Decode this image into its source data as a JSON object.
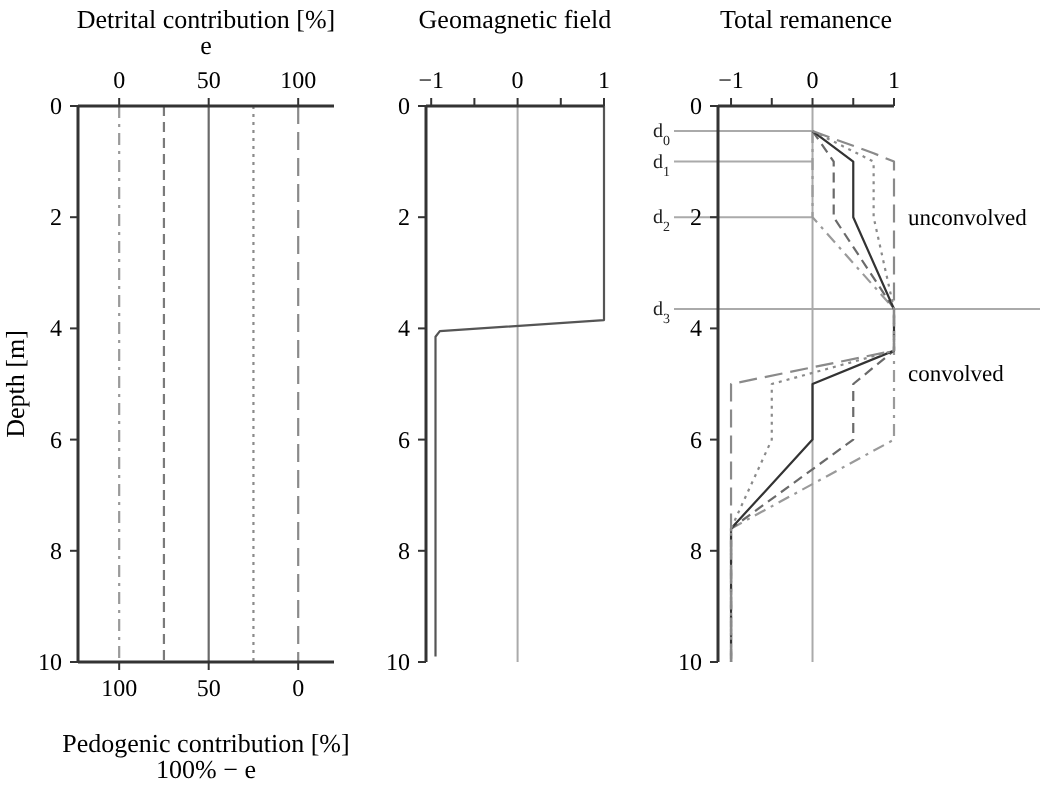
{
  "chart_data": [
    {
      "type": "line",
      "x2label": "Detrital contribution [%]\ne",
      "xlabel": "Pedogenic contribution [%]\n100% − e",
      "ylabel": "Depth [m]",
      "x2lim": [
        -23,
        120
      ],
      "x2ticks": [
        0,
        50,
        100
      ],
      "xlim": [
        123,
        -20
      ],
      "xticks": [
        100,
        50,
        0
      ],
      "ylim": [
        10,
        0
      ],
      "yticks": [
        0,
        2,
        4,
        6,
        8,
        10
      ],
      "series": [
        {
          "axis": "x2",
          "color": "#9a9a9a",
          "line_style": "dashdot",
          "x": [
            0,
            0
          ],
          "values": [
            0,
            10
          ]
        },
        {
          "axis": "x2",
          "color": "#7a7a7a",
          "line_style": "dashed",
          "x": [
            25,
            25
          ],
          "values": [
            0,
            10
          ]
        },
        {
          "axis": "x2",
          "color": "#6a6a6a",
          "line_style": "solid",
          "x": [
            50,
            50
          ],
          "values": [
            0,
            10
          ]
        },
        {
          "axis": "x2",
          "color": "#8a8a8a",
          "line_style": "dotted",
          "x": [
            75,
            75
          ],
          "values": [
            0,
            10
          ]
        },
        {
          "axis": "x2",
          "color": "#8a8a8a",
          "line_style": "longdashed",
          "x": [
            100,
            100
          ],
          "values": [
            0,
            10
          ]
        }
      ]
    },
    {
      "type": "line",
      "title": "Geomagnetic field",
      "xlim": [
        -1.06,
        1
      ],
      "xticks": [
        {
          "value": -1,
          "label": "−1"
        },
        {
          "value": -0.5,
          "label": null
        },
        0,
        {
          "value": 0.5,
          "label": null
        },
        1
      ],
      "ylim": [
        10,
        0
      ],
      "yticks": [
        0,
        2,
        4,
        6,
        8,
        10
      ],
      "ref_lines": [
        {
          "axis": "x",
          "value": 0,
          "color": "#aaaaaa"
        }
      ],
      "series": [
        {
          "color": "#555555",
          "line_style": "solid",
          "x": [
            1,
            1,
            -0.9,
            -0.95,
            -0.95
          ],
          "values": [
            0,
            3.85,
            4.05,
            4.15,
            9.9
          ]
        }
      ]
    },
    {
      "type": "line",
      "title": "Total remanence",
      "xlim": [
        -1.16,
        1
      ],
      "xticks": [
        {
          "value": -1,
          "label": "−1"
        },
        {
          "value": -0.5,
          "label": null
        },
        0,
        {
          "value": 0.5,
          "label": null
        },
        1
      ],
      "ylim": [
        10,
        0
      ],
      "yticks": [
        0,
        2,
        4,
        6,
        8,
        10
      ],
      "ref_lines": [
        {
          "axis": "x",
          "value": 0,
          "color": "#aaaaaa"
        },
        {
          "axis": "y",
          "value": 0.45,
          "label": "d$_{0}$",
          "color": "#aaaaaa"
        },
        {
          "axis": "y",
          "value": 1,
          "label": "d$_{1}$",
          "color": "#aaaaaa"
        },
        {
          "axis": "y",
          "value": 2,
          "label": "d$_{2}$",
          "color": "#aaaaaa"
        },
        {
          "axis": "y",
          "value": 3.65,
          "label": "d$_{3}$",
          "color": "#aaaaaa"
        }
      ],
      "annotations": [
        {
          "text": "unconvolved",
          "x": 1,
          "y": 2
        },
        {
          "text": "convolved",
          "x": 1,
          "y": 4.8
        }
      ],
      "series": [
        {
          "color": "#9a9a9a",
          "line_style": "dashdot",
          "x": [
            0,
            0,
            1,
            1,
            1,
            -1,
            -1
          ],
          "values": [
            0.45,
            2,
            3.65,
            4.4,
            6,
            7.6,
            10
          ]
        },
        {
          "color": "#6a6a6a",
          "line_style": "dashed",
          "x": [
            0,
            0.26,
            0.26,
            1,
            1,
            0.5,
            0.5,
            -1,
            -1
          ],
          "values": [
            0.45,
            1,
            2,
            3.65,
            4.4,
            5,
            6,
            7.6,
            10
          ]
        },
        {
          "color": "#333333",
          "line_style": "solid",
          "x": [
            0,
            0.5,
            0.5,
            1,
            1,
            0,
            0,
            -1,
            -1
          ],
          "values": [
            0.45,
            1,
            2,
            3.65,
            4.4,
            5,
            6,
            7.6,
            10
          ]
        },
        {
          "color": "#8a8a8a",
          "line_style": "dotted",
          "x": [
            0,
            0.75,
            0.75,
            1,
            1,
            -0.5,
            -0.5,
            -1,
            -1
          ],
          "values": [
            0.45,
            1,
            2,
            3.65,
            4.4,
            5,
            6,
            7.6,
            10
          ]
        },
        {
          "color": "#8a8a8a",
          "line_style": "longdashed",
          "x": [
            0,
            0.75,
            1,
            1,
            -1,
            -1,
            -1
          ],
          "values": [
            0.45,
            0.85,
            1,
            4.4,
            5,
            7.6,
            10
          ]
        }
      ]
    }
  ]
}
